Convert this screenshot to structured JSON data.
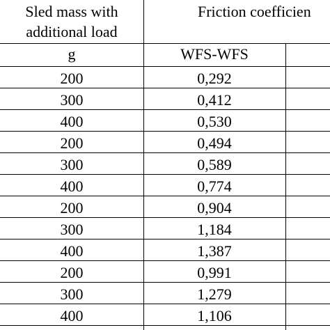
{
  "table": {
    "header": {
      "col1_line1": "Sled mass with",
      "col1_line2": "additional load",
      "col2": "Friction coefficien"
    },
    "units": {
      "col1": "g",
      "col2": "WFS-WFS"
    },
    "rows": [
      {
        "mass": "200",
        "wfs": "0,292"
      },
      {
        "mass": "300",
        "wfs": "0,412"
      },
      {
        "mass": "400",
        "wfs": "0,530"
      },
      {
        "mass": "200",
        "wfs": "0,494"
      },
      {
        "mass": "300",
        "wfs": "0,589"
      },
      {
        "mass": "400",
        "wfs": "0,774"
      },
      {
        "mass": "200",
        "wfs": "0,904"
      },
      {
        "mass": "300",
        "wfs": "1,184"
      },
      {
        "mass": "400",
        "wfs": "1,387"
      },
      {
        "mass": "200",
        "wfs": "0,991"
      },
      {
        "mass": "300",
        "wfs": "1,279"
      },
      {
        "mass": "400",
        "wfs": "1,106"
      }
    ]
  }
}
